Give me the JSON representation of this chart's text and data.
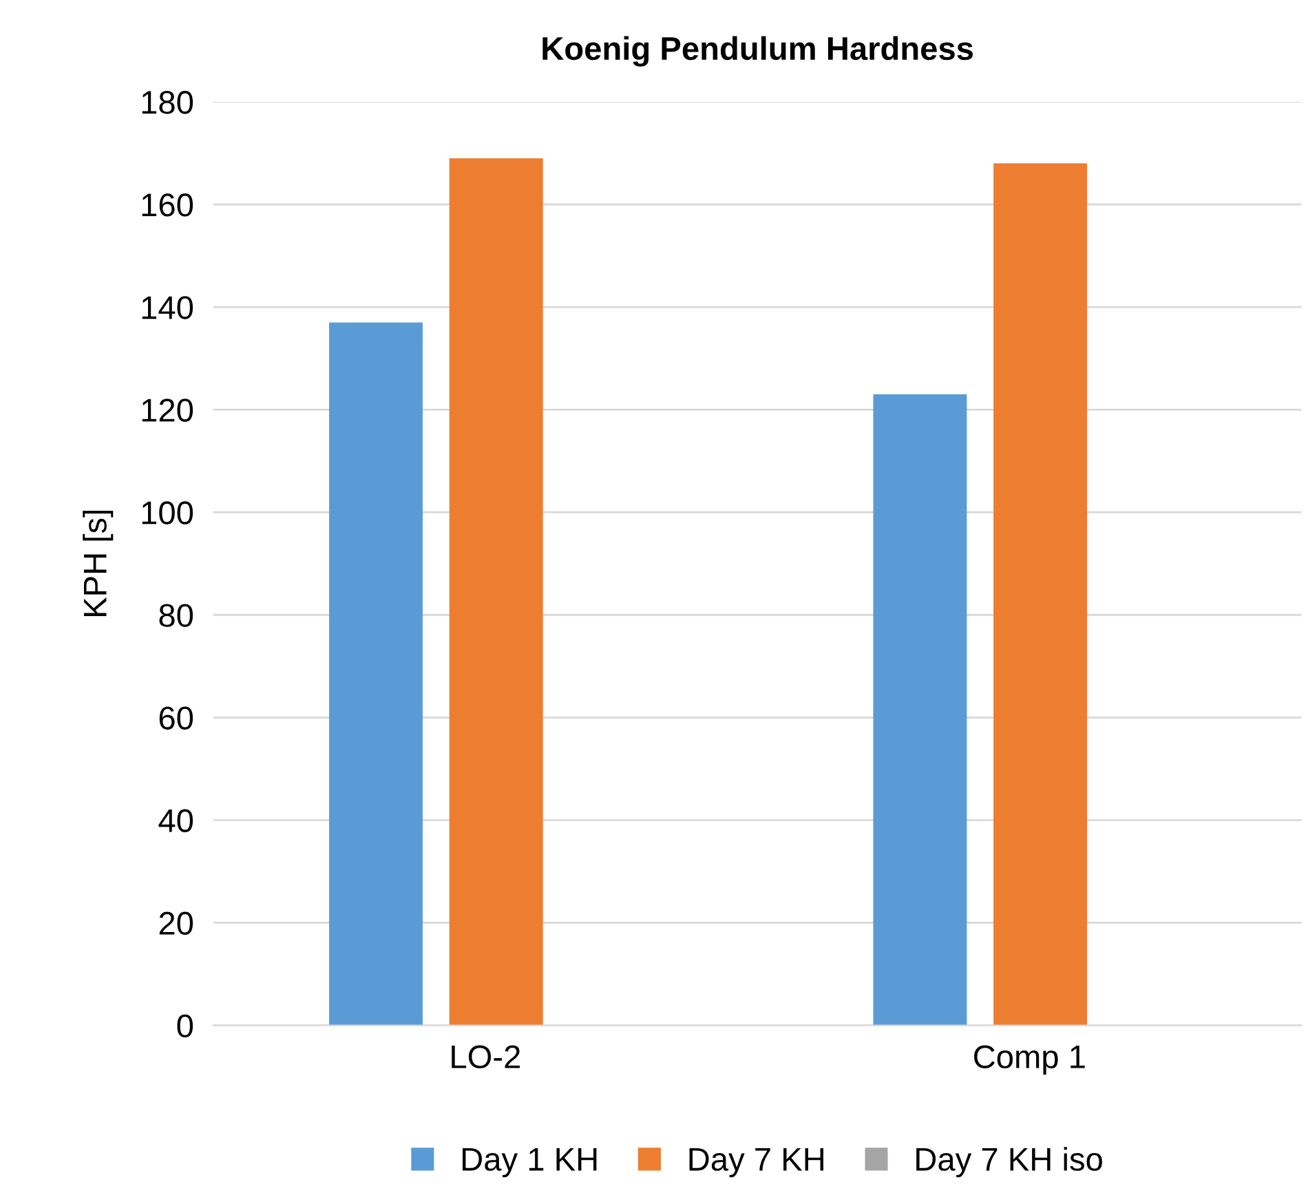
{
  "chart_data": {
    "type": "bar",
    "title": "Koenig Pendulum Hardness",
    "ylabel": "KPH [s]",
    "categories": [
      "LO-2",
      "Comp 1"
    ],
    "series": [
      {
        "name": "Day 1 KH",
        "color": "#5b9bd5",
        "values": [
          137,
          123
        ]
      },
      {
        "name": "Day 7 KH",
        "color": "#ed7d31",
        "values": [
          169,
          168
        ]
      },
      {
        "name": "Day 7 KH iso",
        "color": "#a5a5a5",
        "values": [
          null,
          null
        ]
      }
    ],
    "ylim": [
      0,
      180
    ],
    "yticks": [
      0,
      20,
      40,
      60,
      80,
      100,
      120,
      140,
      160,
      180
    ],
    "grid": "y",
    "legend": "bottom"
  }
}
